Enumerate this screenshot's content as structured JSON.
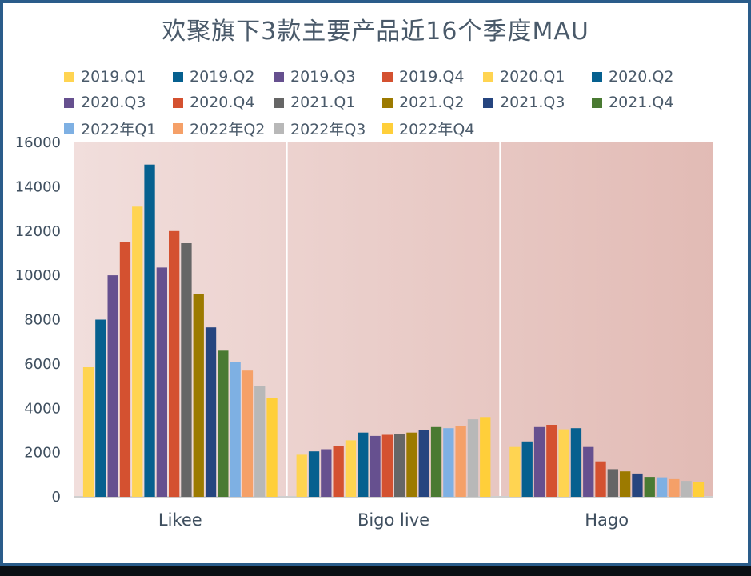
{
  "chart_data": {
    "type": "bar",
    "title": "欢聚旗下3款主要产品近16个季度MAU",
    "categories": [
      "Likee",
      "Bigo live",
      "Hago"
    ],
    "ylim": [
      0,
      16000
    ],
    "yticks": [
      0,
      2000,
      4000,
      6000,
      8000,
      10000,
      12000,
      14000,
      16000
    ],
    "legend_position": "top",
    "grid": false,
    "series": [
      {
        "name": "2019.Q1",
        "color": "#FFD451",
        "values": [
          5850,
          1900,
          2250
        ]
      },
      {
        "name": "2019.Q2",
        "color": "#06608F",
        "values": [
          8000,
          2050,
          2500
        ]
      },
      {
        "name": "2019.Q3",
        "color": "#66508F",
        "values": [
          10000,
          2150,
          3150
        ]
      },
      {
        "name": "2019.Q4",
        "color": "#D45130",
        "values": [
          11500,
          2300,
          3250
        ]
      },
      {
        "name": "2020.Q1",
        "color": "#FFD451",
        "values": [
          13100,
          2550,
          3050
        ]
      },
      {
        "name": "2020.Q2",
        "color": "#06608F",
        "values": [
          15000,
          2900,
          3100
        ]
      },
      {
        "name": "2020.Q3",
        "color": "#66508F",
        "values": [
          10350,
          2750,
          2250
        ]
      },
      {
        "name": "2020.Q4",
        "color": "#D45130",
        "values": [
          12000,
          2800,
          1600
        ]
      },
      {
        "name": "2021.Q1",
        "color": "#666666",
        "values": [
          11450,
          2850,
          1250
        ]
      },
      {
        "name": "2021.Q2",
        "color": "#9C7A00",
        "values": [
          9150,
          2900,
          1150
        ]
      },
      {
        "name": "2021.Q3",
        "color": "#26457F",
        "values": [
          7650,
          3000,
          1050
        ]
      },
      {
        "name": "2021.Q4",
        "color": "#4A7A32",
        "values": [
          6600,
          3150,
          900
        ]
      },
      {
        "name": "2022年Q1",
        "color": "#7EB0E3",
        "values": [
          6100,
          3100,
          880
        ]
      },
      {
        "name": "2022年Q2",
        "color": "#F5A068",
        "values": [
          5700,
          3200,
          800
        ]
      },
      {
        "name": "2022年Q3",
        "color": "#B8B8B8",
        "values": [
          5000,
          3500,
          720
        ]
      },
      {
        "name": "2022年Q4",
        "color": "#FFCF3A",
        "values": [
          4450,
          3600,
          650
        ]
      }
    ]
  }
}
